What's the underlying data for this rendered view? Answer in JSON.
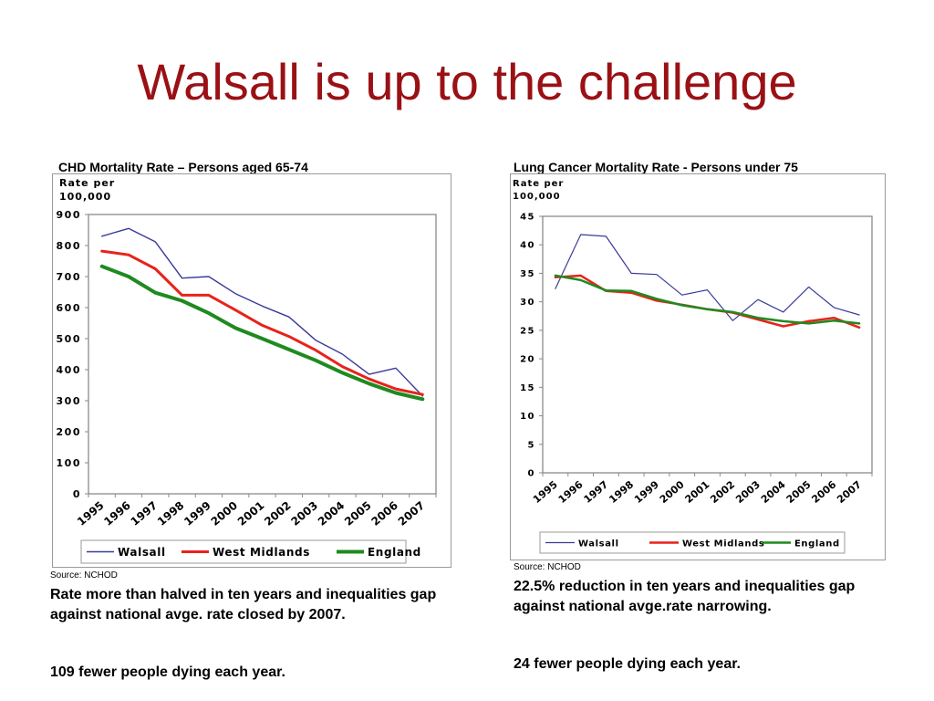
{
  "title": "Walsall is up to the challenge",
  "left": {
    "heading": "CHD Mortality Rate – Persons aged 65-74",
    "source": "Source: NCHOD",
    "caption": "Rate more than halved in ten years and inequalities gap against national avge. rate closed by 2007.",
    "footnote": "109 fewer people dying each year."
  },
  "right": {
    "heading": "Lung Cancer Mortality Rate  - Persons under 75",
    "source": "Source: NCHOD",
    "caption": "22.5% reduction in ten years and inequalities gap against national avge.rate narrowing.",
    "footnote": "24 fewer people dying each year."
  },
  "chart_data": [
    {
      "type": "line",
      "title": "CHD Mortality Rate – Persons aged 65-74",
      "ylabel": "Rate per 100,000",
      "xlabel": "",
      "x": [
        "1995",
        "1996",
        "1997",
        "1998",
        "1999",
        "2000",
        "2001",
        "2002",
        "2003",
        "2004",
        "2005",
        "2006",
        "2007"
      ],
      "ylim": [
        0,
        900
      ],
      "yticks": [
        0,
        100,
        200,
        300,
        400,
        500,
        600,
        700,
        800,
        900
      ],
      "grid": false,
      "legend_position": "bottom",
      "series": [
        {
          "name": "Walsall",
          "color": "#3a3a9a",
          "values": [
            830,
            855,
            812,
            695,
            700,
            645,
            605,
            570,
            495,
            450,
            385,
            405,
            315
          ]
        },
        {
          "name": "West Midlands",
          "color": "#e8221a",
          "values": [
            782,
            770,
            725,
            640,
            640,
            592,
            543,
            507,
            463,
            410,
            370,
            338,
            320
          ]
        },
        {
          "name": "England",
          "color": "#1f8a1f",
          "values": [
            733,
            700,
            648,
            622,
            582,
            534,
            500,
            465,
            430,
            390,
            355,
            325,
            305
          ]
        }
      ]
    },
    {
      "type": "line",
      "title": "Lung Cancer Mortality Rate  - Persons under 75",
      "ylabel": "Rate per 100,000",
      "xlabel": "",
      "x": [
        "1995",
        "1996",
        "1997",
        "1998",
        "1999",
        "2000",
        "2001",
        "2002",
        "2003",
        "2004",
        "2005",
        "2006",
        "2007"
      ],
      "ylim": [
        0,
        45
      ],
      "yticks": [
        0,
        5,
        10,
        15,
        20,
        25,
        30,
        35,
        40,
        45
      ],
      "grid": false,
      "legend_position": "bottom",
      "series": [
        {
          "name": "Walsall",
          "color": "#3a3a9a",
          "values": [
            32.3,
            41.8,
            41.5,
            35.0,
            34.8,
            31.2,
            32.1,
            26.7,
            30.4,
            28.2,
            32.6,
            29.0,
            27.7
          ]
        },
        {
          "name": "West Midlands",
          "color": "#e8221a",
          "values": [
            34.3,
            34.6,
            31.9,
            31.6,
            30.2,
            29.5,
            28.7,
            28.1,
            26.9,
            25.7,
            26.6,
            27.2,
            25.5
          ]
        },
        {
          "name": "England",
          "color": "#1f8a1f",
          "values": [
            34.6,
            33.8,
            32.0,
            31.9,
            30.5,
            29.4,
            28.7,
            28.2,
            27.2,
            26.6,
            26.2,
            26.7,
            26.2
          ]
        }
      ]
    }
  ]
}
